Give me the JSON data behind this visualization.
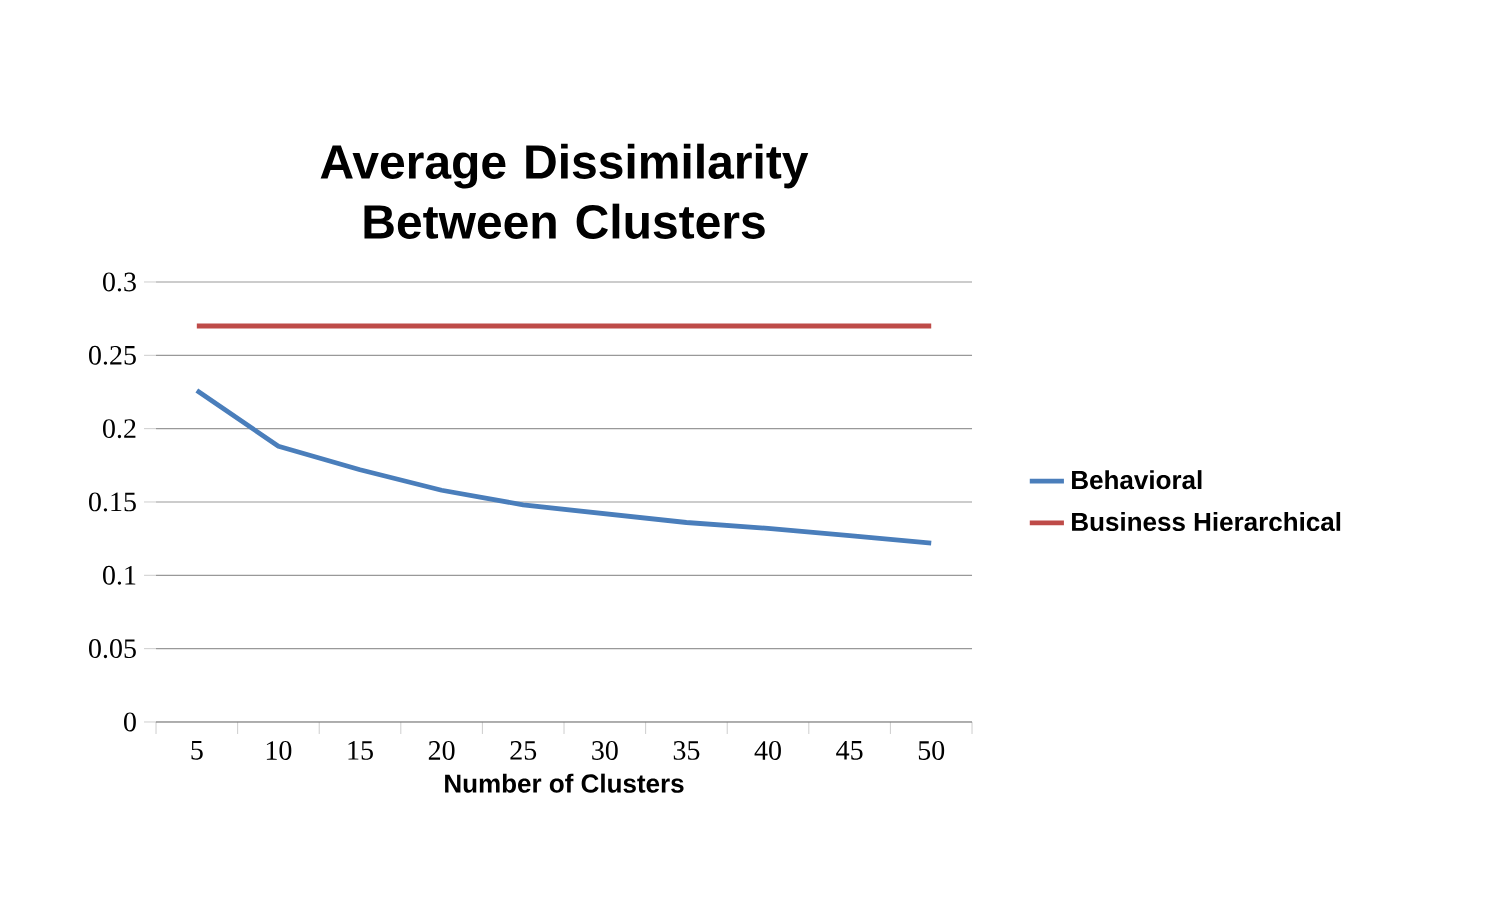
{
  "chart_data": {
    "type": "line",
    "title": "Average Dissimilarity Between Clusters",
    "xlabel": "Number of Clusters",
    "categories": [
      "5",
      "10",
      "15",
      "20",
      "25",
      "30",
      "35",
      "40",
      "45",
      "50"
    ],
    "series": [
      {
        "name": "Behavioral",
        "color": "#4a7ebb",
        "values": [
          0.226,
          0.188,
          0.172,
          0.158,
          0.148,
          0.142,
          0.136,
          0.132,
          0.127,
          0.122
        ]
      },
      {
        "name": "Business Hierarchical",
        "color": "#be4b48",
        "values": [
          0.27,
          0.27,
          0.27,
          0.27,
          0.27,
          0.27,
          0.27,
          0.27,
          0.27,
          0.27
        ]
      }
    ],
    "ylim": [
      0,
      0.3
    ],
    "yticks": [
      0,
      0.05,
      0.1,
      0.15,
      0.2,
      0.25,
      0.3
    ],
    "grid": "y",
    "legend": "right",
    "marker": "none",
    "line_style": "solid"
  }
}
